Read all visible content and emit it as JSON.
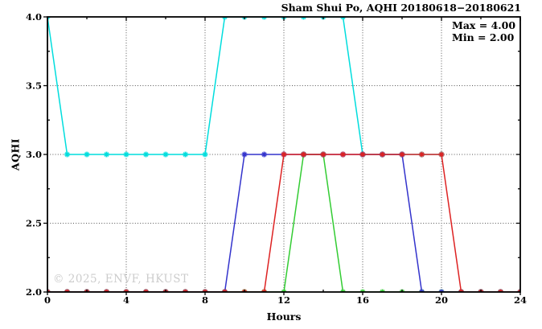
{
  "watermark": {
    "text": "© 2025, ENVF, HKUST",
    "color": "#cccccc"
  },
  "chart_data": {
    "type": "line",
    "title": "Sham Shui Po, AQHI 20180618−20180621",
    "xlabel": "Hours",
    "ylabel": "AQHI",
    "xlim": [
      0,
      24
    ],
    "ylim": [
      2.0,
      4.0
    ],
    "x_major_ticks": [
      0,
      4,
      8,
      12,
      16,
      20,
      24
    ],
    "x_tick_labels": [
      "0",
      "4",
      "8",
      "12",
      "16",
      "20",
      "24"
    ],
    "x_minor_ticks": [
      2,
      6,
      10,
      14,
      18,
      22
    ],
    "y_major_ticks": [
      2.0,
      2.5,
      3.0,
      3.5,
      4.0
    ],
    "y_tick_labels": [
      "2.0",
      "2.5",
      "3.0",
      "3.5",
      "4.0"
    ],
    "y_minor_ticks": [
      2.25,
      2.75,
      3.25,
      3.75
    ],
    "grid": true,
    "legend": "none",
    "marker": "asterisk",
    "frame_color": "#000000",
    "grid_color": "#555555",
    "annotations": [
      "Max = 4.00",
      "Min = 2.00"
    ],
    "series": [
      {
        "name": "cyan-series",
        "color": "#00dddd",
        "x": [
          0,
          1,
          2,
          3,
          4,
          5,
          6,
          7,
          8,
          9,
          10,
          11,
          12,
          13,
          14,
          15,
          16,
          17,
          18,
          19,
          20
        ],
        "y": [
          4,
          3,
          3,
          3,
          3,
          3,
          3,
          3,
          3,
          4,
          4,
          4,
          4,
          4,
          4,
          4,
          3,
          3,
          3,
          3,
          3
        ]
      },
      {
        "name": "green-series",
        "color": "#33cc33",
        "x": [
          0,
          1,
          2,
          3,
          4,
          5,
          6,
          7,
          8,
          9,
          10,
          11,
          12,
          13,
          14,
          15,
          16,
          17,
          18,
          19,
          20,
          21,
          22,
          23,
          24
        ],
        "y": [
          2,
          2,
          2,
          2,
          2,
          2,
          2,
          2,
          2,
          2,
          2,
          2,
          2,
          3,
          3,
          2,
          2,
          2,
          2,
          2,
          2,
          2,
          2,
          2,
          2
        ]
      },
      {
        "name": "blue-series",
        "color": "#3333cc",
        "x": [
          0,
          1,
          2,
          3,
          4,
          5,
          6,
          7,
          8,
          9,
          10,
          11,
          12,
          13,
          14,
          15,
          16,
          17,
          18,
          19,
          20,
          21,
          22,
          23,
          24
        ],
        "y": [
          2,
          2,
          2,
          2,
          2,
          2,
          2,
          2,
          2,
          2,
          3,
          3,
          3,
          3,
          3,
          3,
          3,
          3,
          3,
          2,
          2,
          2,
          2,
          2,
          2
        ]
      },
      {
        "name": "red-series",
        "color": "#dd2222",
        "x": [
          0,
          1,
          2,
          3,
          4,
          5,
          6,
          7,
          8,
          9,
          10,
          11,
          12,
          13,
          14,
          15,
          16,
          17,
          18,
          19,
          20,
          21,
          22,
          23,
          24
        ],
        "y": [
          2,
          2,
          2,
          2,
          2,
          2,
          2,
          2,
          2,
          2,
          2,
          2,
          3,
          3,
          3,
          3,
          3,
          3,
          3,
          3,
          3,
          2,
          2,
          2,
          2
        ]
      }
    ]
  }
}
